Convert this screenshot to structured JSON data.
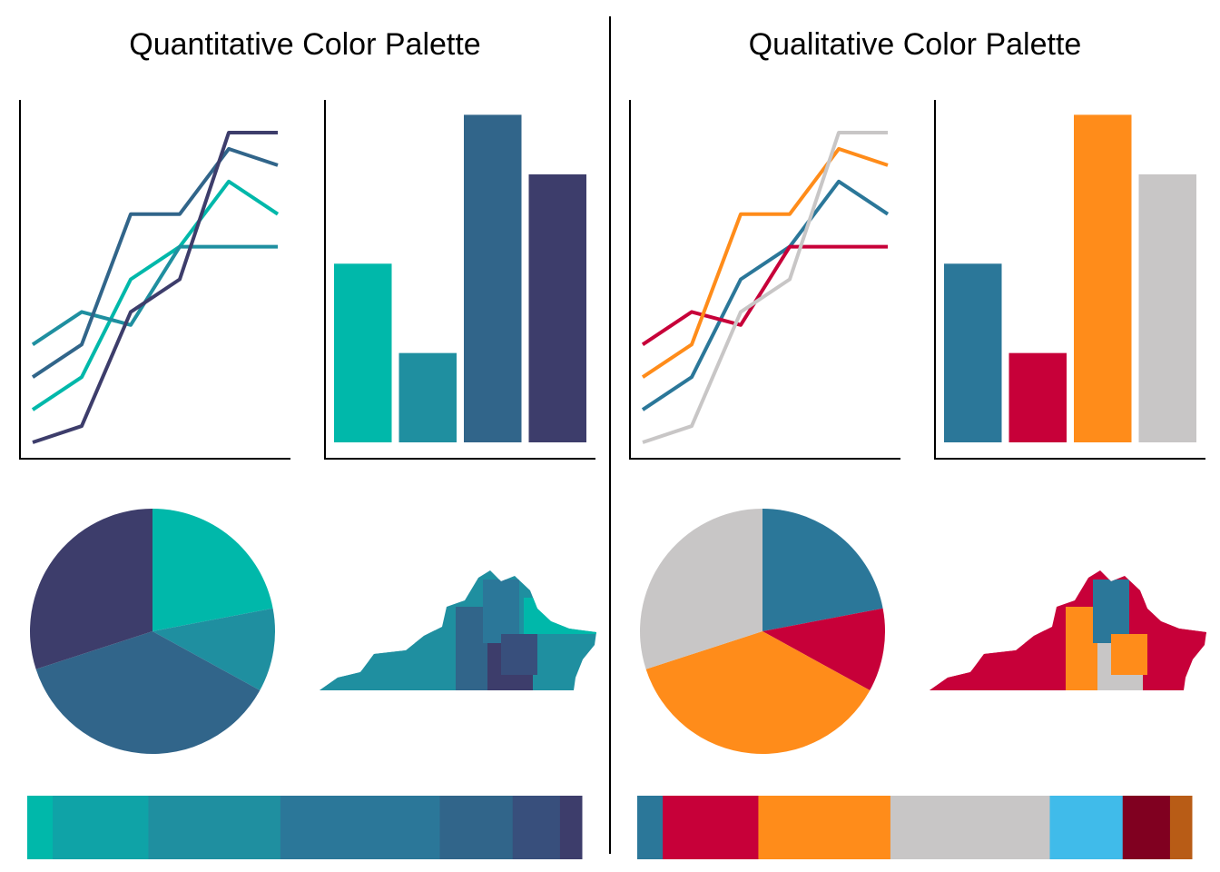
{
  "palettes": [
    {
      "title": "Quantitative Color Palette",
      "colors": [
        "#00B8AA",
        "#0FA3A7",
        "#1F8FA0",
        "#2B7799",
        "#31658A",
        "#384F7C",
        "#3D3D6B"
      ],
      "strip_weights": [
        28,
        105,
        145,
        175,
        80,
        52,
        24
      ],
      "line_series": [
        {
          "values": [
            3,
            4,
            7,
            8,
            10,
            9
          ],
          "color": "#00B8AA"
        },
        {
          "values": [
            5,
            6,
            5.6,
            8,
            8,
            8
          ],
          "color": "#1F8FA0"
        },
        {
          "values": [
            4,
            5,
            9,
            9,
            11,
            10.5
          ],
          "color": "#31658A"
        },
        {
          "values": [
            2,
            2.5,
            6,
            7,
            11.5,
            11.5
          ],
          "color": "#3D3D6B"
        }
      ],
      "bar_values": [
        6,
        3,
        11,
        9
      ],
      "bar_colors": [
        "#00B8AA",
        "#1F8FA0",
        "#31658A",
        "#3D3D6B"
      ],
      "pie_values": [
        22,
        11,
        37,
        30
      ],
      "pie_colors": [
        "#00B8AA",
        "#1F8FA0",
        "#31658A",
        "#3D3D6B"
      ],
      "map_colors": [
        "#1F8FA0",
        "#1F8FA0",
        "#1F8FA0",
        "#31658A",
        "#2B7799",
        "#3D3D6B",
        "#00B8AA",
        "#384F7C"
      ]
    },
    {
      "title": "Qualitative Color Palette",
      "colors": [
        "#2B7799",
        "#C70039",
        "#FF8C1A",
        "#C8C6C6",
        "#40BBEA",
        "#800020",
        "#B85C16"
      ],
      "strip_weights": [
        28,
        105,
        145,
        175,
        80,
        52,
        24
      ],
      "line_series": [
        {
          "values": [
            3,
            4,
            7,
            8,
            10,
            9
          ],
          "color": "#2B7799"
        },
        {
          "values": [
            5,
            6,
            5.6,
            8,
            8,
            8
          ],
          "color": "#C70039"
        },
        {
          "values": [
            4,
            5,
            9,
            9,
            11,
            10.5
          ],
          "color": "#FF8C1A"
        },
        {
          "values": [
            2,
            2.5,
            6,
            7,
            11.5,
            11.5
          ],
          "color": "#C8C6C6"
        }
      ],
      "bar_values": [
        6,
        3,
        11,
        9
      ],
      "bar_colors": [
        "#2B7799",
        "#C70039",
        "#FF8C1A",
        "#C8C6C6"
      ],
      "pie_values": [
        22,
        11,
        37,
        30
      ],
      "pie_colors": [
        "#2B7799",
        "#C70039",
        "#FF8C1A",
        "#C8C6C6"
      ],
      "map_colors": [
        "#C70039",
        "#C70039",
        "#C70039",
        "#FF8C1A",
        "#2B7799",
        "#C8C6C6",
        "#C70039",
        "#FF8C1A"
      ]
    }
  ],
  "chart_data": [
    {
      "type": "line",
      "x": [
        1,
        2,
        3,
        4,
        5,
        6
      ],
      "series": [
        {
          "values": [
            3,
            4,
            7,
            8,
            10,
            9
          ]
        },
        {
          "values": [
            5,
            6,
            5.6,
            8,
            8,
            8
          ]
        },
        {
          "values": [
            4,
            5,
            9,
            9,
            11,
            10.5
          ]
        },
        {
          "values": [
            2,
            2.5,
            6,
            7,
            11.5,
            11.5
          ]
        }
      ],
      "ylim": [
        2,
        12
      ],
      "grid": false
    },
    {
      "type": "bar",
      "categories": [
        "",
        "",
        "",
        ""
      ],
      "values": [
        6,
        3,
        11,
        9
      ],
      "ylim": [
        0,
        11.5
      ],
      "grid": false
    },
    {
      "type": "pie",
      "values": [
        22,
        11,
        37,
        30
      ]
    }
  ]
}
